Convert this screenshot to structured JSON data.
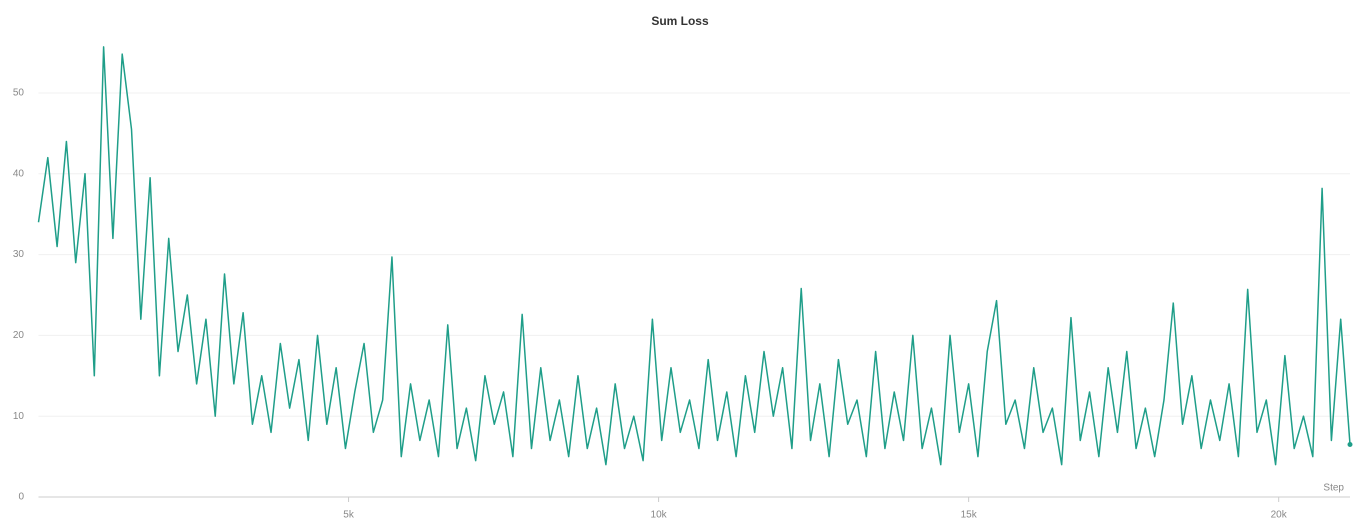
{
  "chart_data": {
    "type": "line",
    "title": "Sum Loss",
    "x_label": "Step",
    "x": [
      0,
      150,
      300,
      450,
      600,
      750,
      900,
      1050,
      1200,
      1350,
      1500,
      1650,
      1800,
      1950,
      2100,
      2250,
      2400,
      2550,
      2700,
      2850,
      3000,
      3150,
      3300,
      3450,
      3600,
      3750,
      3900,
      4050,
      4200,
      4350,
      4500,
      4650,
      4800,
      4950,
      5100,
      5250,
      5400,
      5550,
      5700,
      5850,
      6000,
      6150,
      6300,
      6450,
      6600,
      6750,
      6900,
      7050,
      7200,
      7350,
      7500,
      7650,
      7800,
      7950,
      8100,
      8250,
      8400,
      8550,
      8700,
      8850,
      9000,
      9150,
      9300,
      9450,
      9600,
      9750,
      9900,
      10050,
      10200,
      10350,
      10500,
      10650,
      10800,
      10950,
      11100,
      11250,
      11400,
      11550,
      11700,
      11850,
      12000,
      12150,
      12300,
      12450,
      12600,
      12750,
      12900,
      13050,
      13200,
      13350,
      13500,
      13650,
      13800,
      13950,
      14100,
      14250,
      14400,
      14550,
      14700,
      14850,
      15000,
      15150,
      15300,
      15450,
      15600,
      15750,
      15900,
      16050,
      16200,
      16350,
      16500,
      16650,
      16800,
      16950,
      17100,
      17250,
      17400,
      17550,
      17700,
      17850,
      18000,
      18150,
      18300,
      18450,
      18600,
      18750,
      18900,
      19050,
      19200,
      19350,
      19500,
      19650,
      19800,
      19950,
      20100,
      20250,
      20400,
      20550,
      20700,
      20850,
      21000,
      21150
    ],
    "series": [
      {
        "name": "Sum Loss",
        "color": "#1f9e89",
        "values": [
          34,
          42,
          31,
          44,
          29,
          40,
          15,
          55.7,
          32,
          54.8,
          45.5,
          22,
          39.5,
          15,
          32,
          18,
          25,
          14,
          22,
          10,
          27.6,
          14,
          22.8,
          9,
          15,
          8,
          19,
          11,
          17,
          7,
          20,
          9,
          16,
          6,
          13,
          19,
          8,
          12,
          29.7,
          5,
          14,
          7,
          12,
          5,
          21.3,
          6,
          11,
          4.5,
          15,
          9,
          13,
          5,
          22.6,
          6,
          16,
          7,
          12,
          5,
          15,
          6,
          11,
          4,
          14,
          6,
          10,
          4.5,
          22,
          7,
          16,
          8,
          12,
          6,
          17,
          7,
          13,
          5,
          15,
          8,
          18,
          10,
          16,
          6,
          25.8,
          7,
          14,
          5,
          17,
          9,
          12,
          5,
          18,
          6,
          13,
          7,
          20,
          6,
          11,
          4,
          20,
          8,
          14,
          5,
          18,
          24.3,
          9,
          12,
          6,
          16,
          8,
          11,
          4,
          22.2,
          7,
          13,
          5,
          16,
          8,
          18,
          6,
          11,
          5,
          12,
          24,
          9,
          15,
          6,
          12,
          7,
          14,
          5,
          25.7,
          8,
          12,
          4,
          17.5,
          6,
          10,
          5,
          38.2,
          7,
          22,
          6.5
        ]
      }
    ],
    "xlim": [
      0,
      21150
    ],
    "ylim": [
      0,
      57
    ],
    "xticks": [
      {
        "value": 5000,
        "label": "5k"
      },
      {
        "value": 10000,
        "label": "10k"
      },
      {
        "value": 15000,
        "label": "15k"
      },
      {
        "value": 20000,
        "label": "20k"
      }
    ],
    "yticks": [
      0,
      10,
      20,
      30,
      40,
      50
    ],
    "grid": true
  }
}
